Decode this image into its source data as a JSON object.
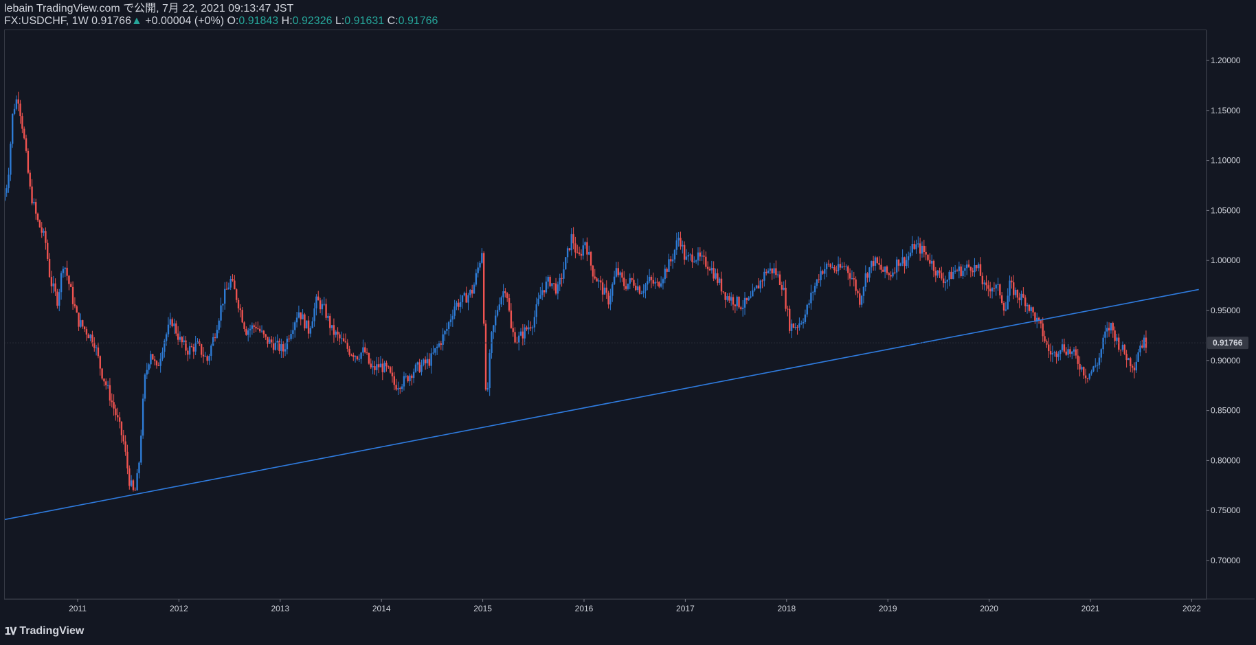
{
  "header": {
    "publish_line": "lebain TradingView.com で公開, 7月 22, 2021 09:13:47 JST",
    "symbol": "FX:USDCHF, 1W",
    "last": "0.91766",
    "change_arrow": "▲",
    "change": "+0.00004 (+0%)",
    "open_label": "O:",
    "open": "0.91843",
    "high_label": "H:",
    "high": "0.92326",
    "low_label": "L:",
    "low": "0.91631",
    "close_label": "C:",
    "close": "0.91766"
  },
  "logo": {
    "text": "TradingView",
    "icon": "tradingview-logo-icon"
  },
  "colors": {
    "background": "#131722",
    "up": "#2e7cd6",
    "down": "#ef5350",
    "trendline": "#2f7ce0",
    "text": "#d1d4dc",
    "positive": "#26a69a"
  },
  "chart_data": {
    "type": "candlestick",
    "symbol": "FX:USDCHF",
    "interval": "1W",
    "x_range": [
      2010.28,
      2022.11
    ],
    "ylim": [
      0.66,
      1.225
    ],
    "yticks": [
      0.7,
      0.75,
      0.8,
      0.85,
      0.9,
      0.95,
      1.0,
      1.05,
      1.1,
      1.15,
      1.2
    ],
    "ytick_labels": [
      "0.70000",
      "0.75000",
      "0.80000",
      "0.85000",
      "0.90000",
      "0.95000",
      "1.00000",
      "1.05000",
      "1.10000",
      "1.15000",
      "1.20000"
    ],
    "xticks": [
      2011,
      2012,
      2013,
      2014,
      2015,
      2016,
      2017,
      2018,
      2019,
      2020,
      2021,
      2022
    ],
    "xtick_labels": [
      "2011",
      "2012",
      "2013",
      "2014",
      "2015",
      "2016",
      "2017",
      "2018",
      "2019",
      "2020",
      "2021",
      "2022"
    ],
    "last_price": 0.91766,
    "last_price_label": "0.91766",
    "trendline": [
      [
        2010.28,
        0.741
      ],
      [
        2022.07,
        0.971
      ]
    ],
    "price_path": [
      [
        2010.28,
        1.06
      ],
      [
        2010.33,
        1.08
      ],
      [
        2010.38,
        1.15
      ],
      [
        2010.43,
        1.165
      ],
      [
        2010.48,
        1.13
      ],
      [
        2010.55,
        1.07
      ],
      [
        2010.62,
        1.04
      ],
      [
        2010.7,
        1.02
      ],
      [
        2010.75,
        0.98
      ],
      [
        2010.82,
        0.96
      ],
      [
        2010.88,
        1.0
      ],
      [
        2010.95,
        0.97
      ],
      [
        2011.02,
        0.94
      ],
      [
        2011.1,
        0.93
      ],
      [
        2011.18,
        0.92
      ],
      [
        2011.25,
        0.89
      ],
      [
        2011.32,
        0.87
      ],
      [
        2011.4,
        0.845
      ],
      [
        2011.47,
        0.82
      ],
      [
        2011.53,
        0.78
      ],
      [
        2011.58,
        0.765
      ],
      [
        2011.62,
        0.79
      ],
      [
        2011.68,
        0.88
      ],
      [
        2011.74,
        0.91
      ],
      [
        2011.8,
        0.89
      ],
      [
        2011.87,
        0.92
      ],
      [
        2011.95,
        0.94
      ],
      [
        2012.03,
        0.92
      ],
      [
        2012.1,
        0.91
      ],
      [
        2012.2,
        0.915
      ],
      [
        2012.3,
        0.9
      ],
      [
        2012.38,
        0.93
      ],
      [
        2012.45,
        0.96
      ],
      [
        2012.53,
        0.98
      ],
      [
        2012.6,
        0.96
      ],
      [
        2012.68,
        0.93
      ],
      [
        2012.78,
        0.935
      ],
      [
        2012.88,
        0.92
      ],
      [
        2012.98,
        0.915
      ],
      [
        2013.05,
        0.91
      ],
      [
        2013.12,
        0.93
      ],
      [
        2013.2,
        0.95
      ],
      [
        2013.3,
        0.93
      ],
      [
        2013.38,
        0.96
      ],
      [
        2013.46,
        0.95
      ],
      [
        2013.53,
        0.93
      ],
      [
        2013.62,
        0.92
      ],
      [
        2013.7,
        0.91
      ],
      [
        2013.78,
        0.905
      ],
      [
        2013.85,
        0.91
      ],
      [
        2013.92,
        0.89
      ],
      [
        2014.0,
        0.895
      ],
      [
        2014.08,
        0.89
      ],
      [
        2014.15,
        0.875
      ],
      [
        2014.25,
        0.88
      ],
      [
        2014.33,
        0.89
      ],
      [
        2014.42,
        0.895
      ],
      [
        2014.5,
        0.9
      ],
      [
        2014.58,
        0.915
      ],
      [
        2014.66,
        0.93
      ],
      [
        2014.74,
        0.955
      ],
      [
        2014.82,
        0.96
      ],
      [
        2014.92,
        0.97
      ],
      [
        2014.99,
        1.0
      ],
      [
        2015.02,
        1.015
      ],
      [
        2015.04,
        0.87
      ],
      [
        2015.06,
        0.86
      ],
      [
        2015.1,
        0.92
      ],
      [
        2015.18,
        0.96
      ],
      [
        2015.25,
        0.975
      ],
      [
        2015.3,
        0.93
      ],
      [
        2015.36,
        0.92
      ],
      [
        2015.44,
        0.93
      ],
      [
        2015.52,
        0.94
      ],
      [
        2015.6,
        0.97
      ],
      [
        2015.68,
        0.98
      ],
      [
        2015.76,
        0.97
      ],
      [
        2015.84,
        1.0
      ],
      [
        2015.9,
        1.025
      ],
      [
        2015.96,
        1.0
      ],
      [
        2016.03,
        1.02
      ],
      [
        2016.1,
        0.99
      ],
      [
        2016.18,
        0.975
      ],
      [
        2016.26,
        0.96
      ],
      [
        2016.34,
        0.99
      ],
      [
        2016.42,
        0.975
      ],
      [
        2016.5,
        0.98
      ],
      [
        2016.58,
        0.97
      ],
      [
        2016.66,
        0.98
      ],
      [
        2016.74,
        0.975
      ],
      [
        2016.82,
        0.99
      ],
      [
        2016.88,
        1.0
      ],
      [
        2016.96,
        1.025
      ],
      [
        2017.02,
        1.0
      ],
      [
        2017.1,
        1.005
      ],
      [
        2017.18,
        1.0
      ],
      [
        2017.26,
        0.995
      ],
      [
        2017.34,
        0.98
      ],
      [
        2017.42,
        0.965
      ],
      [
        2017.5,
        0.96
      ],
      [
        2017.58,
        0.955
      ],
      [
        2017.66,
        0.96
      ],
      [
        2017.74,
        0.975
      ],
      [
        2017.82,
        0.99
      ],
      [
        2017.9,
        0.99
      ],
      [
        2017.98,
        0.975
      ],
      [
        2018.05,
        0.935
      ],
      [
        2018.12,
        0.935
      ],
      [
        2018.2,
        0.945
      ],
      [
        2018.28,
        0.97
      ],
      [
        2018.36,
        0.99
      ],
      [
        2018.44,
        0.995
      ],
      [
        2018.52,
        0.99
      ],
      [
        2018.6,
        0.995
      ],
      [
        2018.68,
        0.98
      ],
      [
        2018.74,
        0.96
      ],
      [
        2018.8,
        0.985
      ],
      [
        2018.88,
        1.0
      ],
      [
        2018.96,
        0.99
      ],
      [
        2019.04,
        0.985
      ],
      [
        2019.12,
        1.0
      ],
      [
        2019.2,
        1.0
      ],
      [
        2019.28,
        1.015
      ],
      [
        2019.36,
        1.01
      ],
      [
        2019.44,
        1.0
      ],
      [
        2019.52,
        0.985
      ],
      [
        2019.6,
        0.98
      ],
      [
        2019.68,
        0.99
      ],
      [
        2019.76,
        0.99
      ],
      [
        2019.84,
        0.995
      ],
      [
        2019.92,
        0.99
      ],
      [
        2019.98,
        0.97
      ],
      [
        2020.05,
        0.975
      ],
      [
        2020.12,
        0.97
      ],
      [
        2020.18,
        0.95
      ],
      [
        2020.22,
        0.975
      ],
      [
        2020.3,
        0.965
      ],
      [
        2020.38,
        0.96
      ],
      [
        2020.46,
        0.945
      ],
      [
        2020.54,
        0.93
      ],
      [
        2020.6,
        0.91
      ],
      [
        2020.66,
        0.905
      ],
      [
        2020.72,
        0.915
      ],
      [
        2020.8,
        0.91
      ],
      [
        2020.86,
        0.905
      ],
      [
        2020.92,
        0.895
      ],
      [
        2020.98,
        0.885
      ],
      [
        2021.04,
        0.89
      ],
      [
        2021.1,
        0.9
      ],
      [
        2021.16,
        0.925
      ],
      [
        2021.22,
        0.935
      ],
      [
        2021.28,
        0.92
      ],
      [
        2021.34,
        0.91
      ],
      [
        2021.4,
        0.9
      ],
      [
        2021.46,
        0.895
      ],
      [
        2021.5,
        0.915
      ],
      [
        2021.55,
        0.918
      ]
    ],
    "annotations": [
      {
        "type": "trendline",
        "from": [
          2010.28,
          0.741
        ],
        "to": [
          2022.07,
          0.971
        ]
      },
      {
        "type": "last-price-line",
        "value": 0.91766
      }
    ]
  }
}
